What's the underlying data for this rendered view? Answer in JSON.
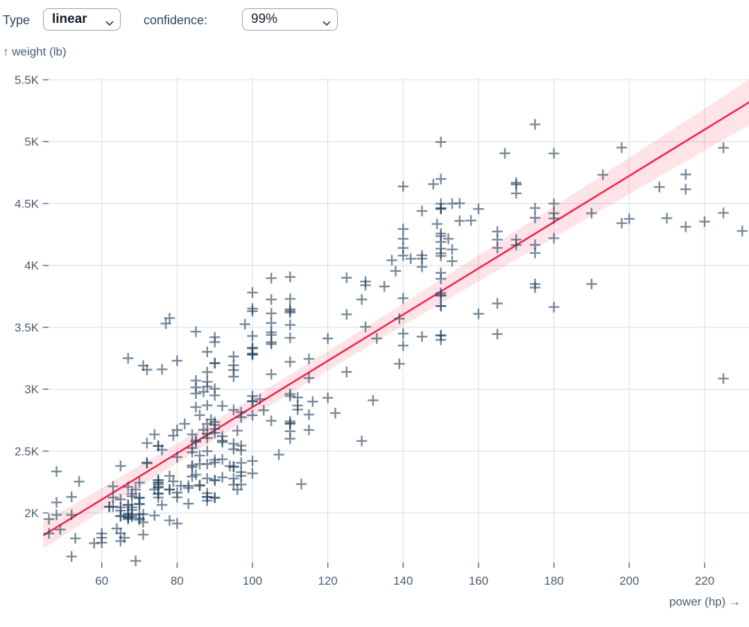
{
  "controls": {
    "type_label": "Type",
    "type_value": "linear",
    "confidence_label": "confidence:",
    "confidence_value": "99%"
  },
  "chart_data": {
    "type": "scatter",
    "marker": "plus",
    "title": "",
    "xlabel": "power (hp)",
    "ylabel": "weight (lb)",
    "xlabel_display": "power (hp) →",
    "ylabel_display": "↑ weight (lb)",
    "xlim": [
      46,
      232
    ],
    "ylim": [
      1600,
      5500
    ],
    "grid": true,
    "x_ticks": [
      60,
      80,
      100,
      120,
      140,
      160,
      180,
      200,
      220
    ],
    "y_ticks": [
      {
        "value": 2000,
        "label": "2K"
      },
      {
        "value": 2500,
        "label": "2.5K"
      },
      {
        "value": 3000,
        "label": "3K"
      },
      {
        "value": 3500,
        "label": "3.5K"
      },
      {
        "value": 4000,
        "label": "4K"
      },
      {
        "value": 4500,
        "label": "4.5K"
      },
      {
        "value": 5000,
        "label": "5K"
      },
      {
        "value": 5500,
        "label": "5.5K"
      }
    ],
    "regression": {
      "type": "linear",
      "confidence": "99%",
      "slope_lb_per_hp": 18.68,
      "intercept_lb": 988,
      "domain_hp": [
        44.5,
        232
      ],
      "band_half_width_lb": {
        "base": 75,
        "per_hp": 1.3,
        "center_hp": 103
      }
    },
    "colors": {
      "point": "#24425f",
      "point_opacity": 0.62,
      "line": "#f4274e",
      "band": "rgba(244,39,78,0.13)",
      "grid": "#d7dce0",
      "tick_dash": "#5d7085",
      "axis_text": "#4a5c70"
    },
    "points": [
      [
        130,
        3504
      ],
      [
        165,
        3693
      ],
      [
        150,
        3436
      ],
      [
        150,
        3433
      ],
      [
        140,
        3449
      ],
      [
        198,
        4341
      ],
      [
        220,
        4354
      ],
      [
        215,
        4312
      ],
      [
        225,
        4425
      ],
      [
        190,
        3850
      ],
      [
        115,
        3090
      ],
      [
        165,
        4142
      ],
      [
        153,
        4034
      ],
      [
        175,
        4166
      ],
      [
        175,
        3850
      ],
      [
        170,
        4209
      ],
      [
        160,
        3609
      ],
      [
        140,
        3353
      ],
      [
        150,
        3761
      ],
      [
        225,
        3086
      ],
      [
        95,
        2372
      ],
      [
        95,
        2833
      ],
      [
        97,
        2774
      ],
      [
        85,
        2587
      ],
      [
        88,
        2130
      ],
      [
        46,
        1835
      ],
      [
        87,
        2672
      ],
      [
        90,
        2430
      ],
      [
        95,
        2375
      ],
      [
        113,
        2234
      ],
      [
        90,
        2648
      ],
      [
        215,
        4615
      ],
      [
        200,
        4376
      ],
      [
        210,
        4382
      ],
      [
        193,
        4732
      ],
      [
        88,
        2130
      ],
      [
        90,
        2264
      ],
      [
        95,
        2228
      ],
      [
        105,
        3439
      ],
      [
        100,
        3329
      ],
      [
        88,
        3302
      ],
      [
        100,
        3288
      ],
      [
        165,
        4209
      ],
      [
        175,
        4464
      ],
      [
        153,
        4499
      ],
      [
        150,
        4457
      ],
      [
        180,
        4422
      ],
      [
        170,
        4582
      ],
      [
        175,
        5140
      ],
      [
        110,
        2962
      ],
      [
        72,
        2408
      ],
      [
        100,
        3282
      ],
      [
        88,
        3139
      ],
      [
        86,
        2220
      ],
      [
        90,
        2123
      ],
      [
        70,
        2074
      ],
      [
        76,
        2065
      ],
      [
        65,
        1773
      ],
      [
        69,
        1613
      ],
      [
        60,
        1834
      ],
      [
        70,
        1955
      ],
      [
        95,
        2278
      ],
      [
        80,
        2126
      ],
      [
        54,
        2254
      ],
      [
        90,
        2408
      ],
      [
        86,
        2226
      ],
      [
        165,
        4274
      ],
      [
        175,
        4385
      ],
      [
        150,
        4135
      ],
      [
        153,
        4129
      ],
      [
        150,
        3672
      ],
      [
        208,
        4633
      ],
      [
        155,
        4502
      ],
      [
        160,
        4456
      ],
      [
        190,
        4422
      ],
      [
        97,
        2330
      ],
      [
        150,
        3892
      ],
      [
        150,
        4098
      ],
      [
        140,
        4294
      ],
      [
        150,
        4077
      ],
      [
        112,
        2933
      ],
      [
        76,
        2511
      ],
      [
        87,
        2979
      ],
      [
        69,
        2189
      ],
      [
        86,
        2395
      ],
      [
        92,
        2288
      ],
      [
        97,
        2506
      ],
      [
        80,
        2164
      ],
      [
        88,
        2100
      ],
      [
        175,
        4100
      ],
      [
        150,
        3672
      ],
      [
        145,
        3988
      ],
      [
        137,
        4042
      ],
      [
        150,
        3777
      ],
      [
        198,
        4952
      ],
      [
        150,
        4464
      ],
      [
        158,
        4363
      ],
      [
        150,
        4237
      ],
      [
        215,
        4735
      ],
      [
        225,
        4951
      ],
      [
        175,
        3821
      ],
      [
        105,
        3121
      ],
      [
        100,
        3278
      ],
      [
        100,
        2945
      ],
      [
        88,
        3021
      ],
      [
        100,
        2904
      ],
      [
        46,
        1950
      ],
      [
        150,
        4997
      ],
      [
        167,
        4906
      ],
      [
        170,
        4654
      ],
      [
        180,
        4499
      ],
      [
        100,
        2789
      ],
      [
        88,
        2279
      ],
      [
        72,
        2401
      ],
      [
        94,
        2379
      ],
      [
        90,
        2124
      ],
      [
        85,
        2310
      ],
      [
        107,
        2472
      ],
      [
        90,
        2265
      ],
      [
        145,
        4082
      ],
      [
        230,
        4278
      ],
      [
        49,
        1867
      ],
      [
        75,
        2158
      ],
      [
        110,
        2660
      ],
      [
        122,
        2807
      ],
      [
        180,
        3664
      ],
      [
        95,
        3102
      ],
      [
        100,
        2901
      ],
      [
        112,
        2868
      ],
      [
        150,
        3399
      ],
      [
        100,
        3336
      ],
      [
        67,
        1950
      ],
      [
        80,
        2451
      ],
      [
        65,
        1836
      ],
      [
        75,
        2542
      ],
      [
        100,
        3781
      ],
      [
        110,
        3632
      ],
      [
        105,
        3613
      ],
      [
        140,
        4141
      ],
      [
        150,
        4699
      ],
      [
        150,
        4457
      ],
      [
        140,
        4638
      ],
      [
        150,
        4257
      ],
      [
        83,
        2219
      ],
      [
        67,
        1963
      ],
      [
        78,
        2300
      ],
      [
        52,
        1649
      ],
      [
        75,
        2125
      ],
      [
        75,
        2246
      ],
      [
        97,
        2230
      ],
      [
        67,
        2065
      ],
      [
        129,
        2582
      ],
      [
        95,
        3264
      ],
      [
        105,
        3459
      ],
      [
        72,
        3158
      ],
      [
        170,
        4668
      ],
      [
        145,
        4440
      ],
      [
        150,
        4498
      ],
      [
        148,
        4657
      ],
      [
        110,
        3907
      ],
      [
        105,
        3897
      ],
      [
        110,
        3730
      ],
      [
        110,
        3221
      ],
      [
        53,
        1795
      ],
      [
        86,
        2464
      ],
      [
        81,
        2220
      ],
      [
        92,
        2572
      ],
      [
        79,
        2255
      ],
      [
        83,
        2202
      ],
      [
        140,
        4215
      ],
      [
        152,
        4215
      ],
      [
        90,
        3211
      ],
      [
        100,
        3651
      ],
      [
        78,
        3574
      ],
      [
        110,
        3645
      ],
      [
        95,
        3193
      ],
      [
        71,
        1825
      ],
      [
        70,
        1990
      ],
      [
        75,
        2155
      ],
      [
        72,
        2565
      ],
      [
        102,
        2920
      ],
      [
        150,
        4190
      ],
      [
        145,
        4055
      ],
      [
        130,
        3870
      ],
      [
        150,
        3755
      ],
      [
        180,
        4380
      ],
      [
        68,
        2045
      ],
      [
        97,
        2545
      ],
      [
        115,
        2671
      ],
      [
        96,
        2189
      ],
      [
        70,
        1945
      ],
      [
        110,
        3520
      ],
      [
        105,
        3365
      ],
      [
        100,
        3630
      ],
      [
        98,
        3525
      ],
      [
        180,
        4220
      ],
      [
        170,
        4165
      ],
      [
        149,
        4335
      ],
      [
        78,
        1940
      ],
      [
        110,
        2740
      ],
      [
        75,
        2265
      ],
      [
        89,
        2755
      ],
      [
        63,
        2051
      ],
      [
        83,
        2075
      ],
      [
        67,
        1985
      ],
      [
        78,
        2190
      ],
      [
        97,
        2815
      ],
      [
        110,
        2600
      ],
      [
        110,
        2720
      ],
      [
        48,
        1985
      ],
      [
        66,
        1800
      ],
      [
        52,
        1985
      ],
      [
        70,
        2070
      ],
      [
        60,
        1800
      ],
      [
        140,
        3735
      ],
      [
        139,
        3570
      ],
      [
        105,
        3535
      ],
      [
        95,
        3155
      ],
      [
        85,
        2965
      ],
      [
        88,
        2720
      ],
      [
        100,
        3430
      ],
      [
        90,
        3210
      ],
      [
        105,
        3380
      ],
      [
        85,
        3070
      ],
      [
        110,
        3620
      ],
      [
        120,
        3410
      ],
      [
        145,
        3425
      ],
      [
        165,
        3445
      ],
      [
        139,
        3205
      ],
      [
        140,
        4080
      ],
      [
        68,
        2155
      ],
      [
        95,
        2560
      ],
      [
        97,
        2300
      ],
      [
        75,
        2230
      ],
      [
        95,
        2515
      ],
      [
        105,
        2745
      ],
      [
        85,
        2855
      ],
      [
        97,
        2405
      ],
      [
        103,
        2830
      ],
      [
        125,
        3140
      ],
      [
        115,
        2795
      ],
      [
        133,
        3410
      ],
      [
        71,
        1990
      ],
      [
        68,
        2135
      ],
      [
        115,
        3245
      ],
      [
        130,
        3840
      ],
      [
        129,
        3725
      ],
      [
        138,
        3955
      ],
      [
        135,
        3830
      ],
      [
        155,
        4360
      ],
      [
        142,
        4054
      ],
      [
        125,
        3605
      ],
      [
        150,
        3940
      ],
      [
        71,
        1925
      ],
      [
        65,
        1975
      ],
      [
        80,
        1915
      ],
      [
        80,
        2670
      ],
      [
        77,
        3530
      ],
      [
        125,
        3900
      ],
      [
        71,
        3190
      ],
      [
        90,
        3420
      ],
      [
        70,
        2120
      ],
      [
        65,
        2019
      ],
      [
        90,
        2678
      ],
      [
        88,
        2870
      ],
      [
        90,
        3003
      ],
      [
        90,
        3381
      ],
      [
        78,
        2188
      ],
      [
        90,
        2711
      ],
      [
        75,
        2542
      ],
      [
        92,
        2434
      ],
      [
        75,
        2265
      ],
      [
        65,
        2110
      ],
      [
        48,
        2085
      ],
      [
        48,
        2335
      ],
      [
        67,
        2210
      ],
      [
        62,
        2050
      ],
      [
        132,
        2910
      ],
      [
        100,
        2420
      ],
      [
        88,
        2500
      ],
      [
        67,
        3250
      ],
      [
        84,
        2490
      ],
      [
        84,
        2635
      ],
      [
        92,
        2620
      ],
      [
        110,
        2725
      ],
      [
        84,
        2385
      ],
      [
        58,
        1755
      ],
      [
        64,
        1875
      ],
      [
        60,
        1760
      ],
      [
        67,
        2065
      ],
      [
        65,
        1975
      ],
      [
        62,
        2050
      ],
      [
        68,
        1985
      ],
      [
        63,
        2215
      ],
      [
        65,
        2045
      ],
      [
        65,
        2380
      ],
      [
        74,
        2190
      ],
      [
        75,
        2210
      ],
      [
        75,
        2245
      ],
      [
        100,
        2320
      ],
      [
        74,
        2635
      ],
      [
        80,
        3230
      ],
      [
        76,
        3160
      ],
      [
        116,
        2900
      ],
      [
        120,
        2930
      ],
      [
        110,
        3415
      ],
      [
        105,
        3725
      ],
      [
        88,
        3060
      ],
      [
        85,
        3465
      ],
      [
        88,
        2605
      ],
      [
        88,
        2640
      ],
      [
        88,
        2395
      ],
      [
        85,
        2575
      ],
      [
        84,
        2525
      ],
      [
        90,
        2735
      ],
      [
        92,
        2865
      ],
      [
        74,
        1980
      ],
      [
        68,
        2025
      ],
      [
        68,
        1970
      ],
      [
        63,
        2125
      ],
      [
        70,
        2125
      ],
      [
        88,
        2160
      ],
      [
        75,
        2205
      ],
      [
        70,
        2245
      ],
      [
        67,
        1965
      ],
      [
        67,
        1965
      ],
      [
        67,
        1995
      ],
      [
        110,
        2945
      ],
      [
        85,
        3015
      ],
      [
        92,
        2585
      ],
      [
        112,
        2835
      ],
      [
        96,
        2665
      ],
      [
        84,
        2370
      ],
      [
        90,
        2950
      ],
      [
        86,
        2790
      ],
      [
        52,
        2130
      ],
      [
        84,
        2295
      ],
      [
        79,
        2625
      ],
      [
        82,
        2720
      ],
      [
        180,
        4905
      ]
    ]
  }
}
